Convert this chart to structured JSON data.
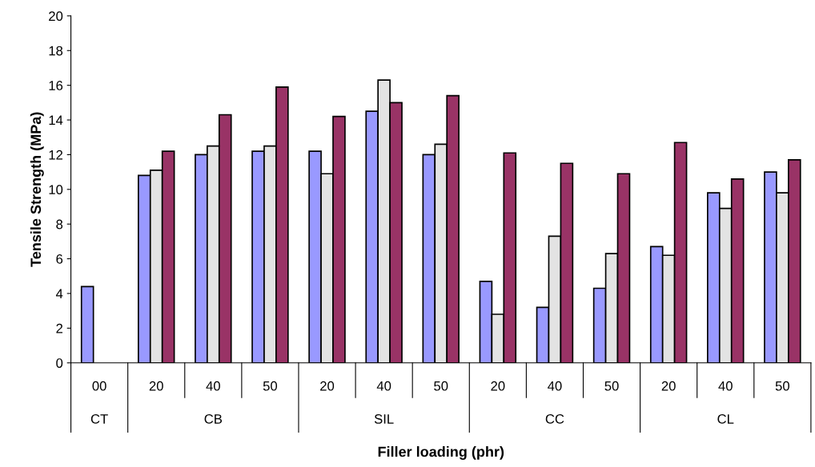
{
  "chart_data": {
    "type": "bar",
    "xlabel": "Filler loading (phr)",
    "ylabel": "Tensile Strength (MPa)",
    "categories": [
      "00",
      "20",
      "40",
      "50",
      "20",
      "40",
      "50",
      "20",
      "40",
      "50",
      "20",
      "40",
      "50"
    ],
    "annotations": [
      "CT",
      "CB",
      "SIL",
      "CC",
      "CL"
    ],
    "series": [
      {
        "color": "#9999ff",
        "values": [
          4.4,
          10.8,
          12.0,
          12.2,
          12.2,
          14.5,
          12.0,
          4.7,
          3.2,
          4.3,
          6.7,
          9.8,
          11.0
        ]
      },
      {
        "color": "#e3e3e3",
        "values": [
          null,
          11.1,
          12.5,
          12.5,
          10.9,
          16.3,
          12.6,
          2.8,
          7.3,
          6.3,
          6.2,
          8.9,
          9.8
        ]
      },
      {
        "color": "#993366",
        "values": [
          null,
          12.2,
          14.3,
          15.9,
          14.2,
          15.0,
          15.4,
          12.1,
          11.5,
          10.9,
          12.7,
          10.6,
          11.7
        ]
      }
    ],
    "ylim": [
      0,
      20
    ],
    "yticks": [
      0,
      2,
      4,
      6,
      8,
      10,
      12,
      14,
      16,
      18,
      20
    ],
    "grid": false,
    "legend": false
  }
}
